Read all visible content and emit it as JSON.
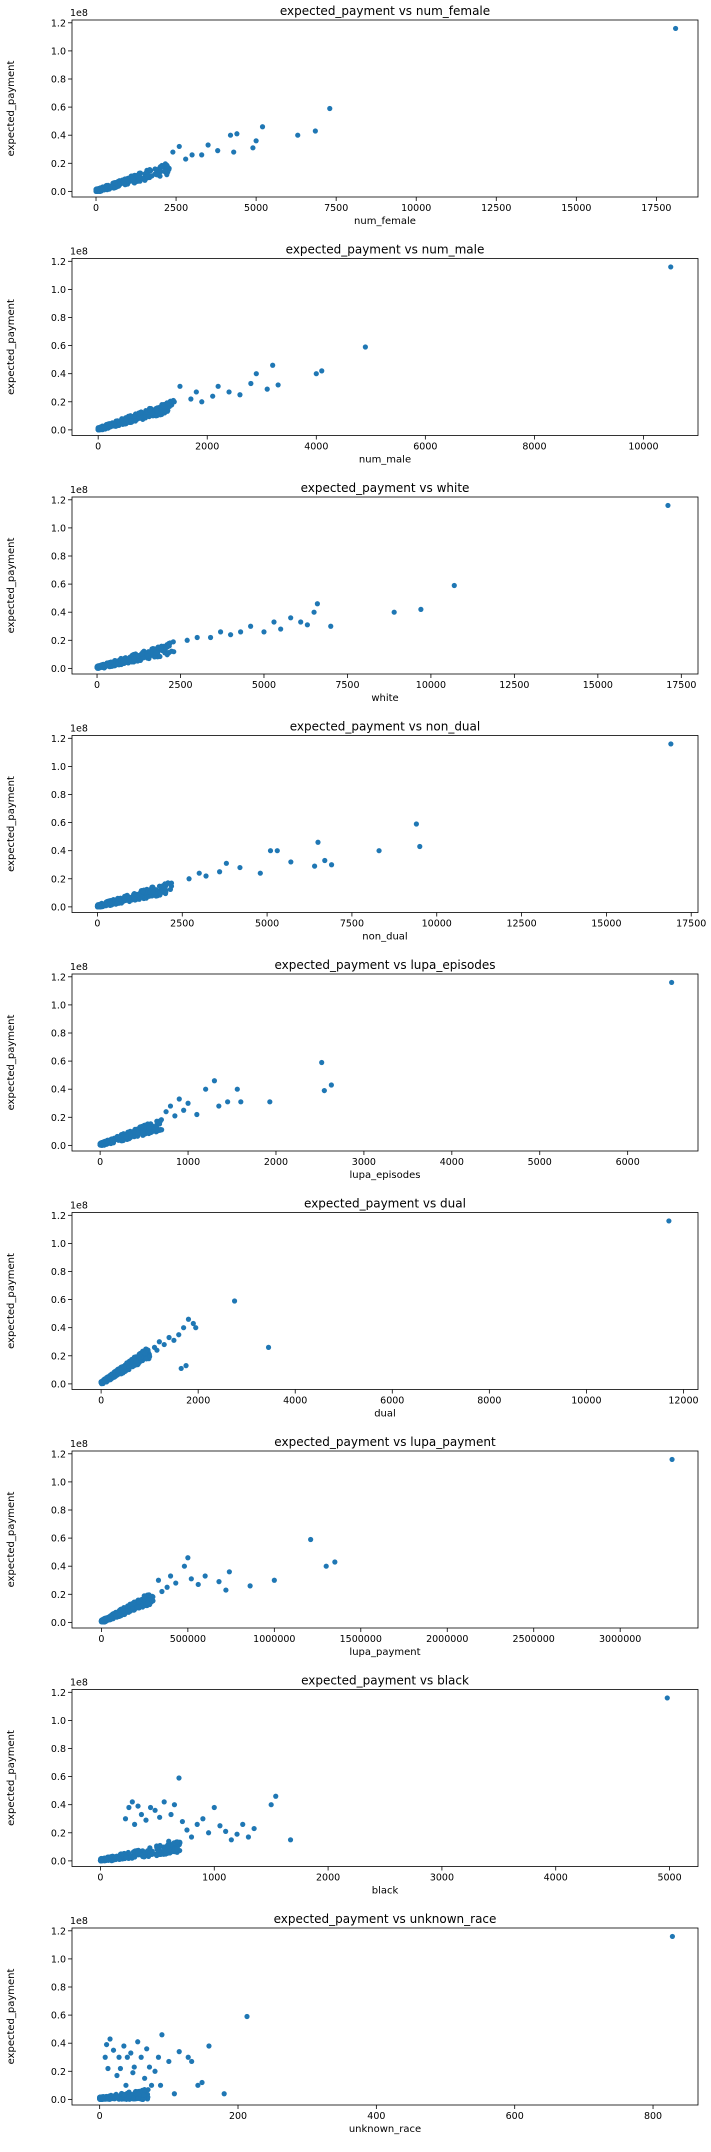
{
  "figure": {
    "point_color": "#1f77b4"
  },
  "chart_data": [
    {
      "type": "scatter",
      "title": "expected_payment vs num_female",
      "xlabel": "num_female",
      "ylabel": "expected_payment",
      "offset_text": "1e8",
      "xlim": [
        -750,
        18800
      ],
      "ylim": [
        -0.04,
        1.22
      ],
      "x_ticks": [
        0,
        2500,
        5000,
        7500,
        10000,
        12500,
        15000,
        17500
      ],
      "x_tick_labels": [
        "0",
        "2500",
        "5000",
        "7500",
        "10000",
        "12500",
        "15000",
        "17500"
      ],
      "y_ticks": [
        0.0,
        0.2,
        0.4,
        0.6,
        0.8,
        1.0,
        1.2
      ],
      "y_tick_labels": [
        "0.0",
        "0.2",
        "0.4",
        "0.6",
        "0.8",
        "1.0",
        "1.2"
      ],
      "slope": 6.5e-05,
      "x_cluster_max": 2300,
      "points": [
        [
          18100,
          1.16
        ],
        [
          7300,
          0.59
        ],
        [
          6850,
          0.43
        ],
        [
          6300,
          0.4
        ],
        [
          5200,
          0.46
        ],
        [
          5000,
          0.36
        ],
        [
          4400,
          0.41
        ],
        [
          4200,
          0.4
        ],
        [
          4900,
          0.31
        ],
        [
          4300,
          0.28
        ],
        [
          3800,
          0.29
        ],
        [
          3500,
          0.33
        ],
        [
          3300,
          0.26
        ],
        [
          3000,
          0.26
        ],
        [
          2800,
          0.23
        ],
        [
          2600,
          0.32
        ],
        [
          2400,
          0.28
        ]
      ]
    },
    {
      "type": "scatter",
      "title": "expected_payment vs num_male",
      "xlabel": "num_male",
      "ylabel": "expected_payment",
      "offset_text": "1e8",
      "xlim": [
        -480,
        11000
      ],
      "ylim": [
        -0.04,
        1.22
      ],
      "x_ticks": [
        0,
        2000,
        4000,
        6000,
        8000,
        10000
      ],
      "x_tick_labels": [
        "0",
        "2000",
        "4000",
        "6000",
        "8000",
        "10000"
      ],
      "y_ticks": [
        0.0,
        0.2,
        0.4,
        0.6,
        0.8,
        1.0,
        1.2
      ],
      "y_tick_labels": [
        "0.0",
        "0.2",
        "0.4",
        "0.6",
        "0.8",
        "1.0",
        "1.2"
      ],
      "slope": 0.000115,
      "x_cluster_max": 1400,
      "points": [
        [
          10500,
          1.16
        ],
        [
          4900,
          0.59
        ],
        [
          4100,
          0.42
        ],
        [
          4000,
          0.4
        ],
        [
          3200,
          0.46
        ],
        [
          3300,
          0.32
        ],
        [
          2900,
          0.4
        ],
        [
          3100,
          0.29
        ],
        [
          2800,
          0.33
        ],
        [
          2600,
          0.25
        ],
        [
          2400,
          0.27
        ],
        [
          2200,
          0.31
        ],
        [
          2100,
          0.24
        ],
        [
          1800,
          0.27
        ],
        [
          1700,
          0.22
        ],
        [
          1500,
          0.31
        ],
        [
          1900,
          0.2
        ]
      ]
    },
    {
      "type": "scatter",
      "title": "expected_payment vs white",
      "xlabel": "white",
      "ylabel": "expected_payment",
      "offset_text": "1e8",
      "xlim": [
        -750,
        18000
      ],
      "ylim": [
        -0.04,
        1.22
      ],
      "x_ticks": [
        0,
        2500,
        5000,
        7500,
        10000,
        12500,
        15000,
        17500
      ],
      "x_tick_labels": [
        "0",
        "2500",
        "5000",
        "7500",
        "10000",
        "12500",
        "15000",
        "17500"
      ],
      "y_ticks": [
        0.0,
        0.2,
        0.4,
        0.6,
        0.8,
        1.0,
        1.2
      ],
      "y_tick_labels": [
        "0.0",
        "0.2",
        "0.4",
        "0.6",
        "0.8",
        "1.0",
        "1.2"
      ],
      "slope": 5.75e-05,
      "x_cluster_max": 2300,
      "points": [
        [
          17100,
          1.16
        ],
        [
          10700,
          0.59
        ],
        [
          9700,
          0.42
        ],
        [
          8900,
          0.4
        ],
        [
          7000,
          0.3
        ],
        [
          6600,
          0.46
        ],
        [
          6500,
          0.4
        ],
        [
          6300,
          0.31
        ],
        [
          6100,
          0.33
        ],
        [
          5800,
          0.36
        ],
        [
          5500,
          0.28
        ],
        [
          5300,
          0.33
        ],
        [
          5000,
          0.26
        ],
        [
          4600,
          0.3
        ],
        [
          4300,
          0.26
        ],
        [
          4000,
          0.24
        ],
        [
          3700,
          0.26
        ],
        [
          3400,
          0.22
        ],
        [
          3000,
          0.22
        ],
        [
          2700,
          0.2
        ]
      ]
    },
    {
      "type": "scatter",
      "title": "expected_payment vs non_dual",
      "xlabel": "non_dual",
      "ylabel": "expected_payment",
      "offset_text": "1e8",
      "xlim": [
        -750,
        17700
      ],
      "ylim": [
        -0.04,
        1.22
      ],
      "x_ticks": [
        0,
        2500,
        5000,
        7500,
        10000,
        12500,
        15000,
        17500
      ],
      "x_tick_labels": [
        "0",
        "2500",
        "5000",
        "7500",
        "10000",
        "12500",
        "15000",
        "17500"
      ],
      "y_ticks": [
        0.0,
        0.2,
        0.4,
        0.6,
        0.8,
        1.0,
        1.2
      ],
      "y_tick_labels": [
        "0.0",
        "0.2",
        "0.4",
        "0.6",
        "0.8",
        "1.0",
        "1.2"
      ],
      "slope": 5.75e-05,
      "x_cluster_max": 2200,
      "points": [
        [
          16900,
          1.16
        ],
        [
          9400,
          0.59
        ],
        [
          9500,
          0.43
        ],
        [
          8300,
          0.4
        ],
        [
          6900,
          0.3
        ],
        [
          6700,
          0.33
        ],
        [
          6500,
          0.46
        ],
        [
          6400,
          0.29
        ],
        [
          5700,
          0.32
        ],
        [
          5300,
          0.4
        ],
        [
          5100,
          0.4
        ],
        [
          4800,
          0.24
        ],
        [
          4200,
          0.28
        ],
        [
          3800,
          0.31
        ],
        [
          3600,
          0.25
        ],
        [
          3200,
          0.22
        ],
        [
          3000,
          0.24
        ],
        [
          2700,
          0.2
        ]
      ]
    },
    {
      "type": "scatter",
      "title": "expected_payment vs lupa_episodes",
      "xlabel": "lupa_episodes",
      "ylabel": "expected_payment",
      "offset_text": "1e8",
      "xlim": [
        -320,
        6800
      ],
      "ylim": [
        -0.04,
        1.22
      ],
      "x_ticks": [
        0,
        1000,
        2000,
        3000,
        4000,
        5000,
        6000
      ],
      "x_tick_labels": [
        "0",
        "1000",
        "2000",
        "3000",
        "4000",
        "5000",
        "6000"
      ],
      "y_ticks": [
        0.0,
        0.2,
        0.4,
        0.6,
        0.8,
        1.0,
        1.2
      ],
      "y_tick_labels": [
        "0.0",
        "0.2",
        "0.4",
        "0.6",
        "0.8",
        "1.0",
        "1.2"
      ],
      "slope": 0.00019,
      "x_cluster_max": 700,
      "points": [
        [
          6500,
          1.16
        ],
        [
          2520,
          0.59
        ],
        [
          2630,
          0.43
        ],
        [
          2550,
          0.39
        ],
        [
          1930,
          0.31
        ],
        [
          1600,
          0.31
        ],
        [
          1560,
          0.4
        ],
        [
          1450,
          0.31
        ],
        [
          1350,
          0.28
        ],
        [
          1300,
          0.46
        ],
        [
          1200,
          0.4
        ],
        [
          1100,
          0.22
        ],
        [
          1000,
          0.3
        ],
        [
          950,
          0.25
        ],
        [
          900,
          0.33
        ],
        [
          850,
          0.21
        ],
        [
          800,
          0.28
        ],
        [
          750,
          0.24
        ]
      ]
    },
    {
      "type": "scatter",
      "title": "expected_payment vs dual",
      "xlabel": "dual",
      "ylabel": "expected_payment",
      "offset_text": "1e8",
      "xlim": [
        -600,
        12300
      ],
      "ylim": [
        -0.04,
        1.22
      ],
      "x_ticks": [
        0,
        2000,
        4000,
        6000,
        8000,
        10000,
        12000
      ],
      "x_tick_labels": [
        "0",
        "2000",
        "4000",
        "6000",
        "8000",
        "10000",
        "12000"
      ],
      "y_ticks": [
        0.0,
        0.2,
        0.4,
        0.6,
        0.8,
        1.0,
        1.2
      ],
      "y_tick_labels": [
        "0.0",
        "0.2",
        "0.4",
        "0.6",
        "0.8",
        "1.0",
        "1.2"
      ],
      "slope": 0.00021,
      "x_cluster_max": 1000,
      "points": [
        [
          11700,
          1.16
        ],
        [
          2750,
          0.59
        ],
        [
          3450,
          0.26
        ],
        [
          1900,
          0.43
        ],
        [
          1800,
          0.46
        ],
        [
          1950,
          0.4
        ],
        [
          1700,
          0.4
        ],
        [
          1750,
          0.13
        ],
        [
          1650,
          0.11
        ],
        [
          1600,
          0.35
        ],
        [
          1500,
          0.31
        ],
        [
          1400,
          0.33
        ],
        [
          1300,
          0.28
        ],
        [
          1200,
          0.3
        ],
        [
          1150,
          0.24
        ],
        [
          1100,
          0.26
        ]
      ]
    },
    {
      "type": "scatter",
      "title": "expected_payment vs lupa_payment",
      "xlabel": "lupa_payment",
      "ylabel": "expected_payment",
      "offset_text": "1e8",
      "xlim": [
        -170000,
        3450000
      ],
      "ylim": [
        -0.04,
        1.22
      ],
      "x_ticks": [
        0,
        500000,
        1000000,
        1500000,
        2000000,
        2500000,
        3000000
      ],
      "x_tick_labels": [
        "0",
        "500000",
        "1000000",
        "1500000",
        "2000000",
        "2500000",
        "3000000"
      ],
      "y_ticks": [
        0.0,
        0.2,
        0.4,
        0.6,
        0.8,
        1.0,
        1.2
      ],
      "y_tick_labels": [
        "0.0",
        "0.2",
        "0.4",
        "0.6",
        "0.8",
        "1.0",
        "1.2"
      ],
      "slope": 5.5e-07,
      "x_cluster_max": 300000,
      "points": [
        [
          3300000,
          1.16
        ],
        [
          1210000,
          0.59
        ],
        [
          1350000,
          0.43
        ],
        [
          1300000,
          0.4
        ],
        [
          1000000,
          0.3
        ],
        [
          860000,
          0.26
        ],
        [
          740000,
          0.36
        ],
        [
          720000,
          0.23
        ],
        [
          680000,
          0.29
        ],
        [
          600000,
          0.33
        ],
        [
          560000,
          0.27
        ],
        [
          520000,
          0.31
        ],
        [
          500000,
          0.46
        ],
        [
          480000,
          0.4
        ],
        [
          430000,
          0.28
        ],
        [
          400000,
          0.33
        ],
        [
          380000,
          0.25
        ],
        [
          350000,
          0.22
        ],
        [
          330000,
          0.3
        ]
      ]
    },
    {
      "type": "scatter",
      "title": "expected_payment vs black",
      "xlabel": "black",
      "ylabel": "expected_payment",
      "offset_text": "1e8",
      "xlim": [
        -250,
        5250
      ],
      "ylim": [
        -0.04,
        1.22
      ],
      "x_ticks": [
        0,
        1000,
        2000,
        3000,
        4000,
        5000
      ],
      "x_tick_labels": [
        "0",
        "1000",
        "2000",
        "3000",
        "4000",
        "5000"
      ],
      "y_ticks": [
        0.0,
        0.2,
        0.4,
        0.6,
        0.8,
        1.0,
        1.2
      ],
      "y_tick_labels": [
        "0.0",
        "0.2",
        "0.4",
        "0.6",
        "0.8",
        "1.0",
        "1.2"
      ],
      "slope": 0.00012,
      "x_cluster_max": 700,
      "points": [
        [
          4980,
          1.16
        ],
        [
          1540,
          0.46
        ],
        [
          1670,
          0.15
        ],
        [
          1500,
          0.4
        ],
        [
          1350,
          0.23
        ],
        [
          1300,
          0.17
        ],
        [
          1250,
          0.26
        ],
        [
          1200,
          0.19
        ],
        [
          1150,
          0.15
        ],
        [
          1100,
          0.21
        ],
        [
          1050,
          0.25
        ],
        [
          1000,
          0.38
        ],
        [
          950,
          0.2
        ],
        [
          900,
          0.3
        ],
        [
          850,
          0.26
        ],
        [
          800,
          0.17
        ],
        [
          760,
          0.22
        ],
        [
          720,
          0.28
        ],
        [
          690,
          0.59
        ],
        [
          650,
          0.4
        ],
        [
          620,
          0.33
        ],
        [
          600,
          0.14
        ],
        [
          560,
          0.42
        ],
        [
          520,
          0.31
        ],
        [
          480,
          0.36
        ],
        [
          440,
          0.38
        ],
        [
          400,
          0.29
        ],
        [
          360,
          0.33
        ],
        [
          330,
          0.39
        ],
        [
          300,
          0.26
        ],
        [
          280,
          0.42
        ],
        [
          250,
          0.38
        ],
        [
          220,
          0.3
        ]
      ]
    },
    {
      "type": "scatter",
      "title": "expected_payment vs unknown_race",
      "xlabel": "unknown_race",
      "ylabel": "expected_payment",
      "offset_text": "1e8",
      "xlim": [
        -40,
        865
      ],
      "ylim": [
        -0.04,
        1.22
      ],
      "x_ticks": [
        0,
        200,
        400,
        600,
        800
      ],
      "x_tick_labels": [
        "0",
        "200",
        "400",
        "600",
        "800"
      ],
      "y_ticks": [
        0.0,
        0.2,
        0.4,
        0.6,
        0.8,
        1.0,
        1.2
      ],
      "y_tick_labels": [
        "0.0",
        "0.2",
        "0.4",
        "0.6",
        "0.8",
        "1.0",
        "1.2"
      ],
      "slope": 0.0002,
      "x_cluster_max": 70,
      "points": [
        [
          828,
          1.16
        ],
        [
          213,
          0.59
        ],
        [
          180,
          0.04
        ],
        [
          158,
          0.38
        ],
        [
          148,
          0.12
        ],
        [
          142,
          0.1
        ],
        [
          133,
          0.27
        ],
        [
          128,
          0.3
        ],
        [
          115,
          0.34
        ],
        [
          108,
          0.04
        ],
        [
          100,
          0.27
        ],
        [
          90,
          0.46
        ],
        [
          88,
          0.1
        ],
        [
          85,
          0.3
        ],
        [
          80,
          0.2
        ],
        [
          75,
          0.1
        ],
        [
          72,
          0.23
        ],
        [
          68,
          0.36
        ],
        [
          65,
          0.15
        ],
        [
          60,
          0.3
        ],
        [
          55,
          0.41
        ],
        [
          50,
          0.23
        ],
        [
          48,
          0.19
        ],
        [
          45,
          0.33
        ],
        [
          40,
          0.3
        ],
        [
          38,
          0.1
        ],
        [
          35,
          0.38
        ],
        [
          30,
          0.22
        ],
        [
          28,
          0.3
        ],
        [
          25,
          0.17
        ],
        [
          20,
          0.35
        ],
        [
          15,
          0.43
        ],
        [
          12,
          0.22
        ],
        [
          10,
          0.39
        ],
        [
          8,
          0.3
        ]
      ]
    }
  ]
}
